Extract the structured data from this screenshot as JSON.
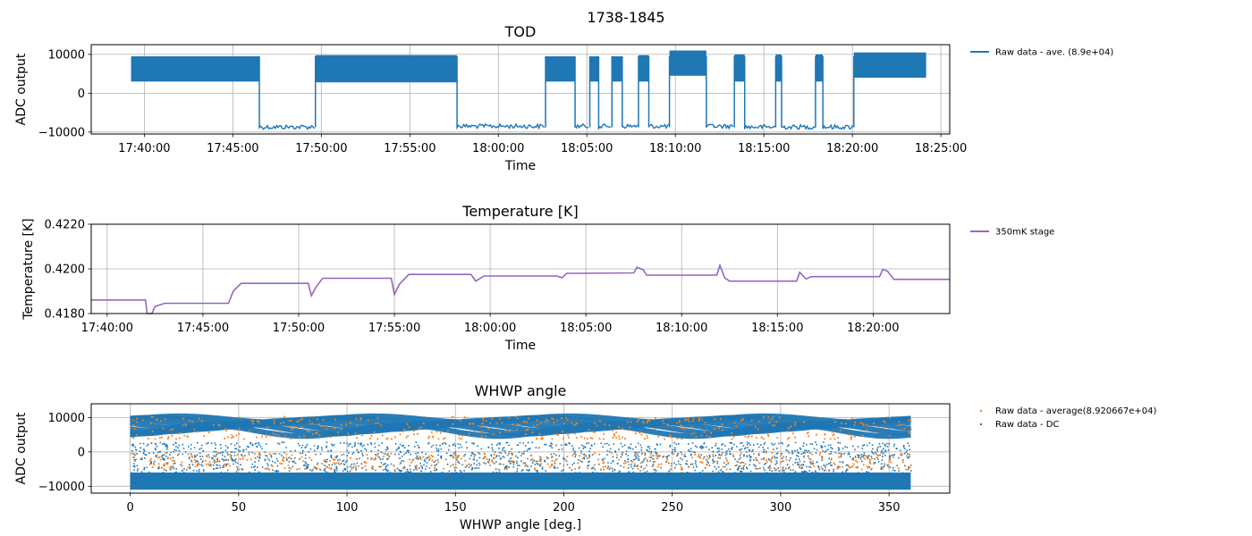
{
  "figure": {
    "suptitle": "1738-1845"
  },
  "chart_data": [
    {
      "type": "line",
      "title": "TOD",
      "xlabel": "Time",
      "ylabel": "ADC output",
      "x_ticks": [
        "17:40:00",
        "17:45:00",
        "17:50:00",
        "17:55:00",
        "18:00:00",
        "18:05:00",
        "18:10:00",
        "18:15:00",
        "18:20:00",
        "18:25:00"
      ],
      "y_ticks": [
        "10000",
        "0",
        "−10000"
      ],
      "xlim": [
        "17:37:00",
        "18:25:30"
      ],
      "ylim": [
        -10500,
        12500
      ],
      "grid": true,
      "legend_placement": "outside-right",
      "series": [
        {
          "name": "Raw data - ave. (8.9e+04)",
          "color": "#1f77b4",
          "segments": [
            {
              "start": "17:39:15",
              "end": "17:46:30",
              "state": "high",
              "low": 3000,
              "high": 9500
            },
            {
              "start": "17:46:30",
              "end": "17:49:40",
              "state": "low",
              "value": -8700
            },
            {
              "start": "17:49:40",
              "end": "17:57:40",
              "state": "high",
              "low": 2800,
              "high": 9800
            },
            {
              "start": "17:57:40",
              "end": "18:02:40",
              "state": "low",
              "value": -8500
            },
            {
              "start": "18:02:40",
              "end": "18:04:20",
              "state": "high",
              "low": 3000,
              "high": 9500
            },
            {
              "start": "18:04:20",
              "end": "18:05:10",
              "state": "low",
              "value": -8500
            },
            {
              "start": "18:05:10",
              "end": "18:05:40",
              "state": "high",
              "low": 3000,
              "high": 9500
            },
            {
              "start": "18:05:40",
              "end": "18:06:25",
              "state": "low",
              "value": -8500
            },
            {
              "start": "18:06:25",
              "end": "18:07:00",
              "state": "high",
              "low": 3000,
              "high": 9500
            },
            {
              "start": "18:07:00",
              "end": "18:07:55",
              "state": "low",
              "value": -8500
            },
            {
              "start": "18:07:55",
              "end": "18:08:30",
              "state": "high",
              "low": 3000,
              "high": 9800
            },
            {
              "start": "18:08:30",
              "end": "18:09:40",
              "state": "low",
              "value": -8500
            },
            {
              "start": "18:09:40",
              "end": "18:11:45",
              "state": "high",
              "low": 4500,
              "high": 11000
            },
            {
              "start": "18:11:45",
              "end": "18:13:20",
              "state": "low",
              "value": -8500
            },
            {
              "start": "18:13:20",
              "end": "18:13:55",
              "state": "high",
              "low": 3000,
              "high": 10000
            },
            {
              "start": "18:13:55",
              "end": "18:15:40",
              "state": "low",
              "value": -8700
            },
            {
              "start": "18:15:40",
              "end": "18:16:00",
              "state": "high",
              "low": 3000,
              "high": 10000
            },
            {
              "start": "18:16:00",
              "end": "18:17:55",
              "state": "low",
              "value": -8700
            },
            {
              "start": "18:17:55",
              "end": "18:18:20",
              "state": "high",
              "low": 3000,
              "high": 10000
            },
            {
              "start": "18:18:20",
              "end": "18:20:05",
              "state": "low",
              "value": -8700
            },
            {
              "start": "18:20:05",
              "end": "18:24:10",
              "state": "high",
              "low": 4000,
              "high": 10500
            }
          ]
        }
      ]
    },
    {
      "type": "line",
      "title": "Temperature [K]",
      "xlabel": "Time",
      "ylabel": "Temperature [K]",
      "x_ticks": [
        "17:40:00",
        "17:45:00",
        "17:50:00",
        "17:55:00",
        "18:00:00",
        "18:05:00",
        "18:10:00",
        "18:15:00",
        "18:20:00"
      ],
      "y_ticks": [
        "0.4220",
        "0.4200",
        "0.4180"
      ],
      "xlim": [
        "17:39:10",
        "18:24:00"
      ],
      "ylim": [
        0.418,
        0.422
      ],
      "grid": true,
      "legend_placement": "outside-right",
      "series": [
        {
          "name": "350mK stage",
          "color": "#9467bd",
          "points": [
            [
              "17:39:10",
              0.41861
            ],
            [
              "17:42:00",
              0.41861
            ],
            [
              "17:42:05",
              0.418
            ],
            [
              "17:42:20",
              0.418
            ],
            [
              "17:42:30",
              0.41832
            ],
            [
              "17:43:00",
              0.41846
            ],
            [
              "17:46:20",
              0.41846
            ],
            [
              "17:46:35",
              0.419
            ],
            [
              "17:46:50",
              0.41922
            ],
            [
              "17:47:00",
              0.41935
            ],
            [
              "17:50:30",
              0.41935
            ],
            [
              "17:50:40",
              0.4188
            ],
            [
              "17:50:55",
              0.4192
            ],
            [
              "17:51:15",
              0.41958
            ],
            [
              "17:54:50",
              0.41958
            ],
            [
              "17:55:00",
              0.41885
            ],
            [
              "17:55:15",
              0.4193
            ],
            [
              "17:55:45",
              0.41975
            ],
            [
              "17:59:00",
              0.41975
            ],
            [
              "17:59:15",
              0.41945
            ],
            [
              "17:59:40",
              0.41968
            ],
            [
              "18:03:30",
              0.41968
            ],
            [
              "18:03:45",
              0.4196
            ],
            [
              "18:04:00",
              0.4198
            ],
            [
              "18:07:30",
              0.41982
            ],
            [
              "18:07:40",
              0.42007
            ],
            [
              "18:08:00",
              0.41995
            ],
            [
              "18:08:10",
              0.41972
            ],
            [
              "18:11:50",
              0.41972
            ],
            [
              "18:12:00",
              0.42016
            ],
            [
              "18:12:15",
              0.4196
            ],
            [
              "18:12:30",
              0.41945
            ],
            [
              "18:16:00",
              0.41945
            ],
            [
              "18:16:10",
              0.41985
            ],
            [
              "18:16:30",
              0.41955
            ],
            [
              "18:16:45",
              0.41965
            ],
            [
              "18:20:20",
              0.41965
            ],
            [
              "18:20:30",
              0.41998
            ],
            [
              "18:20:45",
              0.4199
            ],
            [
              "18:21:05",
              0.41953
            ],
            [
              "18:24:00",
              0.41953
            ]
          ]
        }
      ]
    },
    {
      "type": "scatter",
      "title": "WHWP angle",
      "xlabel": "WHWP angle [deg.]",
      "ylabel": "ADC output",
      "x_ticks": [
        "0",
        "50",
        "100",
        "150",
        "200",
        "250",
        "300",
        "350"
      ],
      "y_ticks": [
        "10000",
        "0",
        "−10000"
      ],
      "xlim": [
        -18,
        378
      ],
      "ylim": [
        -12000,
        14000
      ],
      "grid": true,
      "legend_placement": "outside-right",
      "series": [
        {
          "name": "Raw data - average(8.920667e+04)",
          "color": "#ff7f0e",
          "x_range": [
            0,
            360
          ],
          "y_bands": [
            [
              4000,
              12000
            ],
            [
              -5000,
              0
            ]
          ]
        },
        {
          "name": "Raw data - DC",
          "color": "#1f77b4",
          "x_range": [
            0,
            360
          ],
          "y_bands": [
            [
              -11000,
              -6000
            ],
            [
              0,
              12500
            ]
          ]
        }
      ]
    }
  ]
}
